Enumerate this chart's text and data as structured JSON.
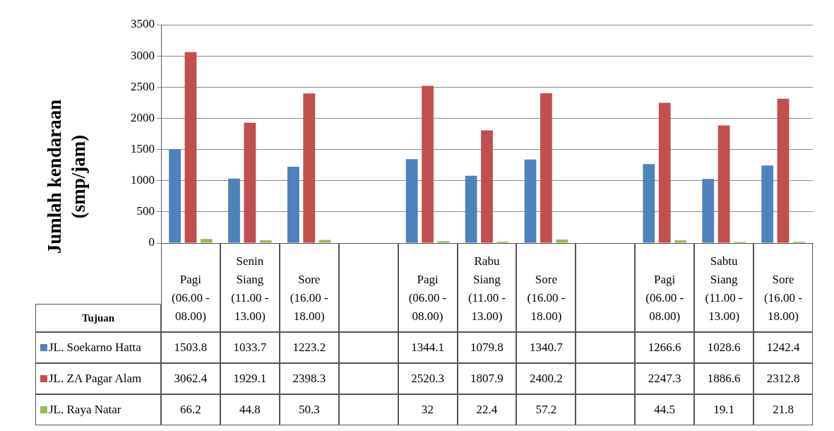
{
  "chart_data": {
    "type": "bar",
    "ylabel": "Jumlah kendaraan (smp/jam)",
    "legend_title": "Tujuan",
    "legend": "left",
    "data_labels": true,
    "grid": "y",
    "categories": [
      "Pagi (06.00 - 08.00)",
      "Senin Siang (11.00 - 13.00)",
      "Sore (16.00 - 18.00)",
      null,
      "Pagi (06.00 - 08.00)",
      "Rabu Siang (11.00 - 13.00)",
      "Sore (16.00 - 18.00)",
      null,
      "Pagi (06.00 - 08.00)",
      "Sabtu Siang (11.00 - 13.00)",
      "Sore (16.00 - 18.00)"
    ],
    "ylim": [
      0,
      3500
    ],
    "yticks": [
      0,
      500,
      1000,
      1500,
      2000,
      2500,
      3000,
      3500
    ],
    "series": [
      {
        "name": "JL. Soekarno Hatta",
        "color": "#4f81bd",
        "values": [
          1503.8,
          1033.7,
          1223.2,
          null,
          1344.1,
          1079.8,
          1340.7,
          null,
          1266.6,
          1028.6,
          1242.4
        ]
      },
      {
        "name": "JL. ZA Pagar Alam",
        "color": "#c0504d",
        "values": [
          3062.4,
          1929.1,
          2398.3,
          null,
          2520.3,
          1807.9,
          2400.2,
          null,
          2247.3,
          1886.6,
          2312.8
        ]
      },
      {
        "name": "JL. Raya Natar",
        "color": "#9bbb59",
        "values": [
          66.2,
          44.8,
          50.3,
          null,
          32,
          22.4,
          57.2,
          null,
          44.5,
          19.1,
          21.8
        ]
      }
    ]
  }
}
